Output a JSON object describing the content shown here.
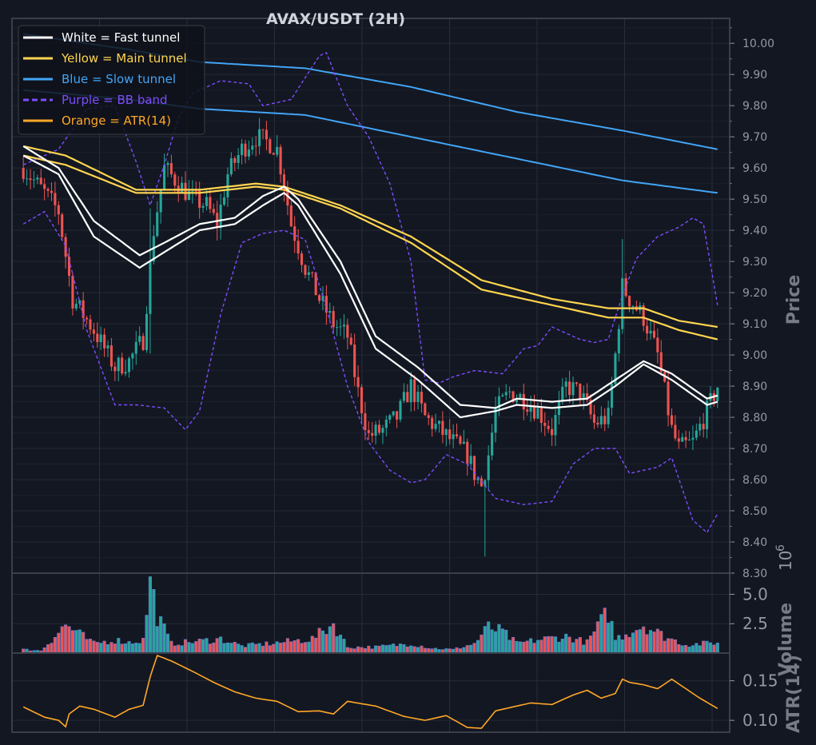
{
  "chart_data": [
    {
      "type": "candlestick",
      "title": "AVAX/USDT (2H)",
      "ylabel": "Price",
      "ylim": [
        8.3,
        10.08
      ],
      "yticks": [
        "8.30",
        "8.40",
        "8.50",
        "8.60",
        "8.70",
        "8.80",
        "8.90",
        "9.00",
        "9.10",
        "9.20",
        "9.30",
        "9.40",
        "9.50",
        "9.60",
        "9.70",
        "9.80",
        "9.90",
        "10.00"
      ],
      "grid": true,
      "legend_position": "top-left",
      "legend": [
        {
          "label": "White = Fast tunnel",
          "color": "#ffffff",
          "dash": false
        },
        {
          "label": "Yellow = Main tunnel",
          "color": "#ffd54f",
          "dash": false
        },
        {
          "label": "Blue = Slow tunnel",
          "color": "#42a5f5",
          "dash": false
        },
        {
          "label": "Purple = BB band",
          "color": "#7c4dff",
          "dash": true
        },
        {
          "label": "Orange = ATR(14)",
          "color": "#ffa726",
          "dash": false
        }
      ],
      "colors": {
        "up": "#26a69a",
        "down": "#ef5350"
      },
      "ohlc_anchors": [
        [
          0,
          9.6
        ],
        [
          6,
          9.52
        ],
        [
          10,
          9.46
        ],
        [
          14,
          9.18
        ],
        [
          20,
          9.08
        ],
        [
          26,
          8.96
        ],
        [
          30,
          8.98
        ],
        [
          34,
          9.05
        ],
        [
          37,
          9.4
        ],
        [
          40,
          9.6
        ],
        [
          44,
          9.55
        ],
        [
          48,
          9.5
        ],
        [
          52,
          9.48
        ],
        [
          55,
          9.42
        ],
        [
          58,
          9.58
        ],
        [
          62,
          9.66
        ],
        [
          66,
          9.7
        ],
        [
          70,
          9.68
        ],
        [
          72,
          9.66
        ],
        [
          74,
          9.55
        ],
        [
          76,
          9.42
        ],
        [
          80,
          9.28
        ],
        [
          84,
          9.18
        ],
        [
          88,
          9.1
        ],
        [
          92,
          9.06
        ],
        [
          95,
          8.88
        ],
        [
          98,
          8.74
        ],
        [
          102,
          8.76
        ],
        [
          106,
          8.8
        ],
        [
          110,
          8.9
        ],
        [
          114,
          8.8
        ],
        [
          118,
          8.76
        ],
        [
          122,
          8.72
        ],
        [
          126,
          8.68
        ],
        [
          128,
          8.62
        ],
        [
          130,
          8.58
        ],
        [
          132,
          8.68
        ],
        [
          134,
          8.82
        ],
        [
          138,
          8.88
        ],
        [
          142,
          8.86
        ],
        [
          146,
          8.82
        ],
        [
          150,
          8.76
        ],
        [
          154,
          8.9
        ],
        [
          158,
          8.88
        ],
        [
          162,
          8.78
        ],
        [
          166,
          8.8
        ],
        [
          168,
          9.0
        ],
        [
          170,
          9.22
        ],
        [
          172,
          9.18
        ],
        [
          176,
          9.12
        ],
        [
          180,
          9.0
        ],
        [
          184,
          8.76
        ],
        [
          186,
          8.7
        ],
        [
          190,
          8.72
        ],
        [
          194,
          8.82
        ],
        [
          197,
          8.9
        ]
      ],
      "fast_tunnel": [
        [
          [
            0,
            9.67
          ],
          [
            10,
            9.6
          ],
          [
            20,
            9.43
          ],
          [
            33,
            9.32
          ],
          [
            40,
            9.36
          ],
          [
            50,
            9.42
          ],
          [
            60,
            9.44
          ],
          [
            68,
            9.51
          ],
          [
            74,
            9.54
          ],
          [
            78,
            9.5
          ],
          [
            90,
            9.3
          ],
          [
            100,
            9.06
          ],
          [
            112,
            8.96
          ],
          [
            124,
            8.84
          ],
          [
            134,
            8.83
          ],
          [
            140,
            8.86
          ],
          [
            150,
            8.85
          ],
          [
            160,
            8.86
          ],
          [
            168,
            8.92
          ],
          [
            176,
            8.98
          ],
          [
            184,
            8.94
          ],
          [
            194,
            8.86
          ],
          [
            197,
            8.87
          ]
        ],
        [
          [
            0,
            9.64
          ],
          [
            10,
            9.58
          ],
          [
            20,
            9.38
          ],
          [
            33,
            9.28
          ],
          [
            40,
            9.33
          ],
          [
            50,
            9.4
          ],
          [
            60,
            9.42
          ],
          [
            68,
            9.48
          ],
          [
            74,
            9.52
          ],
          [
            78,
            9.48
          ],
          [
            90,
            9.26
          ],
          [
            100,
            9.02
          ],
          [
            112,
            8.92
          ],
          [
            124,
            8.8
          ],
          [
            134,
            8.82
          ],
          [
            140,
            8.84
          ],
          [
            150,
            8.83
          ],
          [
            160,
            8.84
          ],
          [
            168,
            8.9
          ],
          [
            176,
            8.97
          ],
          [
            184,
            8.92
          ],
          [
            194,
            8.84
          ],
          [
            197,
            8.85
          ]
        ]
      ],
      "main_tunnel": [
        [
          [
            0,
            9.67
          ],
          [
            12,
            9.64
          ],
          [
            32,
            9.53
          ],
          [
            50,
            9.53
          ],
          [
            66,
            9.55
          ],
          [
            74,
            9.54
          ],
          [
            90,
            9.48
          ],
          [
            110,
            9.38
          ],
          [
            130,
            9.24
          ],
          [
            150,
            9.18
          ],
          [
            166,
            9.15
          ],
          [
            176,
            9.15
          ],
          [
            186,
            9.11
          ],
          [
            197,
            9.09
          ]
        ],
        [
          [
            0,
            9.64
          ],
          [
            12,
            9.61
          ],
          [
            32,
            9.52
          ],
          [
            50,
            9.52
          ],
          [
            66,
            9.54
          ],
          [
            74,
            9.53
          ],
          [
            90,
            9.47
          ],
          [
            110,
            9.36
          ],
          [
            130,
            9.21
          ],
          [
            150,
            9.16
          ],
          [
            166,
            9.12
          ],
          [
            176,
            9.12
          ],
          [
            186,
            9.08
          ],
          [
            197,
            9.05
          ]
        ]
      ],
      "slow_tunnel": [
        [
          [
            0,
            10.03
          ],
          [
            30,
            9.98
          ],
          [
            50,
            9.94
          ],
          [
            80,
            9.92
          ],
          [
            110,
            9.86
          ],
          [
            140,
            9.78
          ],
          [
            170,
            9.72
          ],
          [
            197,
            9.66
          ]
        ],
        [
          [
            0,
            9.85
          ],
          [
            30,
            9.82
          ],
          [
            50,
            9.79
          ],
          [
            80,
            9.77
          ],
          [
            110,
            9.7
          ],
          [
            140,
            9.63
          ],
          [
            170,
            9.56
          ],
          [
            197,
            9.52
          ]
        ]
      ],
      "bb_band": [
        [
          [
            0,
            9.61
          ],
          [
            10,
            9.66
          ],
          [
            18,
            9.79
          ],
          [
            26,
            9.8
          ],
          [
            32,
            9.62
          ],
          [
            36,
            9.48
          ],
          [
            40,
            9.61
          ],
          [
            44,
            9.76
          ],
          [
            48,
            9.84
          ],
          [
            56,
            9.88
          ],
          [
            64,
            9.87
          ],
          [
            68,
            9.8
          ],
          [
            76,
            9.82
          ],
          [
            84,
            9.96
          ],
          [
            86,
            9.97
          ],
          [
            92,
            9.8
          ],
          [
            98,
            9.7
          ],
          [
            104,
            9.55
          ],
          [
            110,
            9.3
          ],
          [
            114,
            8.92
          ],
          [
            118,
            8.91
          ],
          [
            122,
            8.93
          ],
          [
            128,
            8.95
          ],
          [
            136,
            8.94
          ],
          [
            142,
            9.02
          ],
          [
            146,
            9.03
          ],
          [
            150,
            9.09
          ],
          [
            158,
            9.05
          ],
          [
            162,
            9.04
          ],
          [
            166,
            9.05
          ],
          [
            170,
            9.19
          ],
          [
            174,
            9.31
          ],
          [
            180,
            9.38
          ],
          [
            186,
            9.41
          ],
          [
            190,
            9.44
          ],
          [
            193,
            9.42
          ],
          [
            197,
            9.16
          ]
        ],
        [
          [
            0,
            9.42
          ],
          [
            6,
            9.46
          ],
          [
            12,
            9.35
          ],
          [
            18,
            9.08
          ],
          [
            26,
            8.84
          ],
          [
            32,
            8.84
          ],
          [
            40,
            8.83
          ],
          [
            46,
            8.76
          ],
          [
            50,
            8.82
          ],
          [
            56,
            9.13
          ],
          [
            62,
            9.36
          ],
          [
            68,
            9.39
          ],
          [
            74,
            9.4
          ],
          [
            80,
            9.37
          ],
          [
            86,
            9.15
          ],
          [
            92,
            8.9
          ],
          [
            98,
            8.72
          ],
          [
            104,
            8.63
          ],
          [
            110,
            8.59
          ],
          [
            114,
            8.6
          ],
          [
            120,
            8.68
          ],
          [
            126,
            8.65
          ],
          [
            134,
            8.54
          ],
          [
            142,
            8.52
          ],
          [
            150,
            8.53
          ],
          [
            156,
            8.65
          ],
          [
            162,
            8.7
          ],
          [
            168,
            8.7
          ],
          [
            172,
            8.62
          ],
          [
            180,
            8.64
          ],
          [
            184,
            8.67
          ],
          [
            190,
            8.47
          ],
          [
            194,
            8.43
          ],
          [
            197,
            8.49
          ]
        ]
      ]
    },
    {
      "type": "bar",
      "ylabel": "Volume",
      "scale_label": "10",
      "scale_exp": "6",
      "ylim": [
        0,
        6.8
      ],
      "yticks": [
        "2.5",
        "5.0"
      ],
      "volume_anchors": [
        [
          0,
          0.3
        ],
        [
          5,
          0.2
        ],
        [
          12,
          2.4
        ],
        [
          20,
          0.8
        ],
        [
          26,
          1.1
        ],
        [
          30,
          0.9
        ],
        [
          34,
          1.1
        ],
        [
          36,
          6.2
        ],
        [
          38,
          3.2
        ],
        [
          42,
          0.8
        ],
        [
          50,
          1.0
        ],
        [
          56,
          1.2
        ],
        [
          62,
          0.6
        ],
        [
          70,
          0.8
        ],
        [
          76,
          1.0
        ],
        [
          82,
          1.2
        ],
        [
          88,
          2.5
        ],
        [
          92,
          0.5
        ],
        [
          100,
          0.5
        ],
        [
          110,
          0.8
        ],
        [
          116,
          0.4
        ],
        [
          122,
          0.3
        ],
        [
          128,
          0.8
        ],
        [
          132,
          2.2
        ],
        [
          136,
          1.8
        ],
        [
          140,
          0.8
        ],
        [
          148,
          1.2
        ],
        [
          154,
          1.4
        ],
        [
          160,
          0.9
        ],
        [
          166,
          3.5
        ],
        [
          168,
          1.2
        ],
        [
          176,
          2.4
        ],
        [
          182,
          1.4
        ],
        [
          188,
          0.7
        ],
        [
          193,
          0.8
        ],
        [
          197,
          0.9
        ]
      ]
    },
    {
      "type": "line",
      "ylabel": "ATR(14)",
      "ylim": [
        0.085,
        0.185
      ],
      "yticks": [
        "0.10",
        "0.15"
      ],
      "color": "#ffa726",
      "atr_anchors": [
        [
          0,
          0.117
        ],
        [
          6,
          0.104
        ],
        [
          10,
          0.1
        ],
        [
          12,
          0.092
        ],
        [
          13,
          0.108
        ],
        [
          16,
          0.118
        ],
        [
          20,
          0.114
        ],
        [
          26,
          0.104
        ],
        [
          30,
          0.114
        ],
        [
          34,
          0.119
        ],
        [
          36,
          0.155
        ],
        [
          38,
          0.182
        ],
        [
          42,
          0.175
        ],
        [
          48,
          0.162
        ],
        [
          54,
          0.148
        ],
        [
          60,
          0.136
        ],
        [
          66,
          0.128
        ],
        [
          72,
          0.124
        ],
        [
          78,
          0.111
        ],
        [
          84,
          0.112
        ],
        [
          88,
          0.108
        ],
        [
          92,
          0.124
        ],
        [
          100,
          0.118
        ],
        [
          108,
          0.105
        ],
        [
          114,
          0.1
        ],
        [
          120,
          0.106
        ],
        [
          126,
          0.091
        ],
        [
          130,
          0.09
        ],
        [
          134,
          0.112
        ],
        [
          138,
          0.116
        ],
        [
          144,
          0.122
        ],
        [
          150,
          0.12
        ],
        [
          156,
          0.132
        ],
        [
          160,
          0.138
        ],
        [
          164,
          0.128
        ],
        [
          168,
          0.134
        ],
        [
          170,
          0.152
        ],
        [
          172,
          0.148
        ],
        [
          176,
          0.145
        ],
        [
          180,
          0.14
        ],
        [
          184,
          0.152
        ],
        [
          188,
          0.14
        ],
        [
          192,
          0.128
        ],
        [
          197,
          0.115
        ]
      ]
    }
  ]
}
